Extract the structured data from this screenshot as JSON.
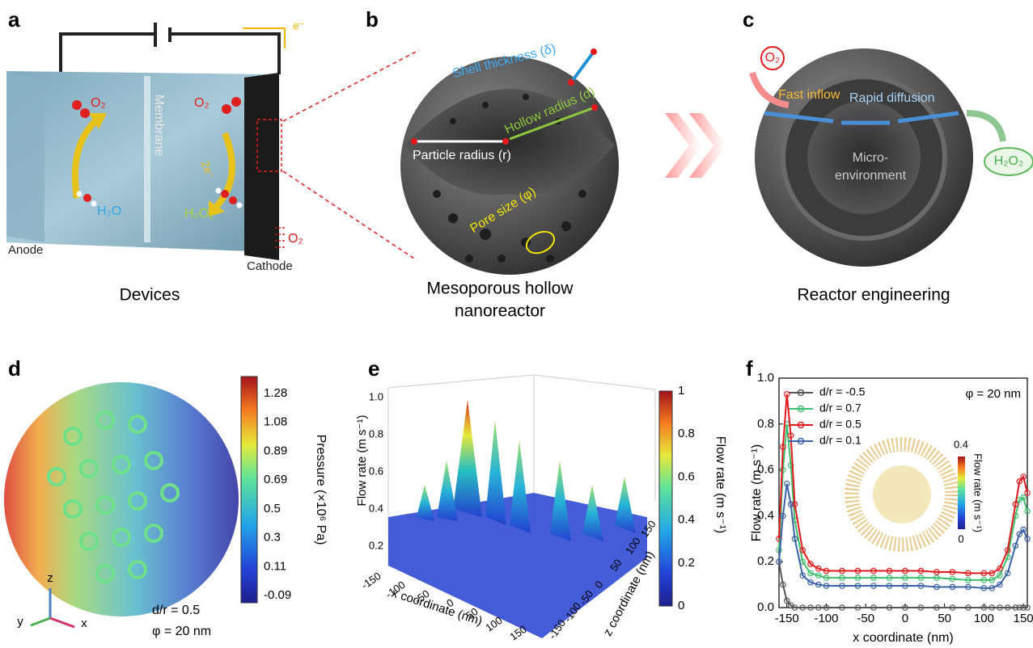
{
  "panel_labels": [
    "a",
    "b",
    "c",
    "d",
    "e",
    "f"
  ],
  "panel_a": {
    "e": "e⁻",
    "o2_left": "O₂",
    "o2_right": "O₂",
    "h2o": "H₂O",
    "membrane": "Membrane",
    "two_e": "2e⁻",
    "h2o2": "H₂O₂",
    "anode": "Anode",
    "cathode": "Cathode",
    "o2_in": "O₂",
    "caption": "Devices"
  },
  "panel_b": {
    "shell": "Shell thickness (δ)",
    "hollow": "Hollow radius (d)",
    "particle": "Particle radius (r)",
    "pore": "Pore size (φ)",
    "caption": [
      "Mesoporous hollow",
      "nanoreactor"
    ]
  },
  "panel_c": {
    "o2": "O₂",
    "inflow": "Fast inflow",
    "diffusion": "Rapid diffusion",
    "micro": [
      "Micro-",
      "environment"
    ],
    "h2o2": "H₂O₂",
    "caption": "Reactor engineering"
  },
  "panel_d": {
    "colorbar_ticks": [
      "1.28",
      "1.08",
      "0.89",
      "0.69",
      "0.5",
      "0.3",
      "0.11",
      "-0.09"
    ],
    "colorbar_label": "Pressure (×10⁶ Pa)",
    "axes": [
      "z",
      "y",
      "x"
    ],
    "params": [
      "d/r = 0.5",
      "φ = 20 nm"
    ]
  },
  "panel_e": {
    "z_ticks": [
      "0.2",
      "0.4",
      "0.6",
      "0.8",
      "1.0"
    ],
    "z_label": "Flow rate (m s⁻¹)",
    "colorbar_ticks": [
      "0",
      "0.2",
      "0.4",
      "0.6",
      "0.8",
      "1"
    ],
    "colorbar_label": "Flow rate (m s⁻¹)",
    "x_ticks": [
      "-150",
      "-100",
      "-50",
      "0",
      "50",
      "100",
      "150"
    ],
    "x_label": "x coordinate (nm)",
    "y_ticks": [
      "-150",
      "-100",
      "-50",
      "0",
      "50",
      "100",
      "150"
    ],
    "y_label": "z coordinate (nm)"
  },
  "chart_data": {
    "type": "line",
    "x_label": "x coordinate (nm)",
    "y_label": "Flow rate (m s⁻¹)",
    "x": [
      -160,
      -155,
      -150,
      -145,
      -140,
      -130,
      -120,
      -110,
      -100,
      -80,
      -60,
      -40,
      -20,
      0,
      20,
      40,
      60,
      80,
      100,
      110,
      120,
      130,
      140,
      145,
      150,
      155
    ],
    "xlim": [
      -160,
      155
    ],
    "xticks": [
      -150,
      -100,
      -50,
      0,
      50,
      100,
      150
    ],
    "ylim": [
      0,
      1
    ],
    "yticks": [
      {
        "value": 0,
        "label": "0.0"
      },
      0.2,
      0.4,
      0.6,
      0.8,
      {
        "value": 1,
        "label": "1.0"
      }
    ],
    "legend": "upper left",
    "series": [
      {
        "name": "d/r = -0.5",
        "color": "#555555",
        "values": [
          0.2,
          0.1,
          0.03,
          0.01,
          0,
          0,
          0,
          0,
          0,
          0,
          0,
          0,
          0,
          0,
          0,
          0,
          0,
          0,
          0,
          0,
          0,
          0,
          0,
          0,
          0,
          0
        ]
      },
      {
        "name": "d/r = 0.7",
        "color": "#3dbf6e",
        "values": [
          0.25,
          0.6,
          0.8,
          0.62,
          0.38,
          0.2,
          0.15,
          0.14,
          0.13,
          0.13,
          0.13,
          0.13,
          0.13,
          0.13,
          0.13,
          0.13,
          0.125,
          0.12,
          0.12,
          0.12,
          0.14,
          0.22,
          0.4,
          0.47,
          0.48,
          0.42
        ]
      },
      {
        "name": "d/r = 0.5",
        "color": "#e31a1c",
        "values": [
          0.3,
          0.7,
          0.93,
          0.75,
          0.45,
          0.25,
          0.19,
          0.17,
          0.16,
          0.16,
          0.16,
          0.16,
          0.16,
          0.16,
          0.16,
          0.155,
          0.155,
          0.15,
          0.15,
          0.15,
          0.17,
          0.25,
          0.45,
          0.55,
          0.57,
          0.5
        ]
      },
      {
        "name": "d/r = 0.1",
        "color": "#3a63a8",
        "values": [
          0.2,
          0.4,
          0.54,
          0.45,
          0.3,
          0.14,
          0.11,
          0.1,
          0.095,
          0.095,
          0.095,
          0.095,
          0.095,
          0.095,
          0.095,
          0.09,
          0.09,
          0.09,
          0.085,
          0.085,
          0.1,
          0.15,
          0.27,
          0.32,
          0.34,
          0.3
        ]
      }
    ],
    "annotation": "φ = 20 nm",
    "inset_ticks": [
      "0.4",
      "0"
    ],
    "inset_label": "Flow rate (m s⁻¹)"
  }
}
